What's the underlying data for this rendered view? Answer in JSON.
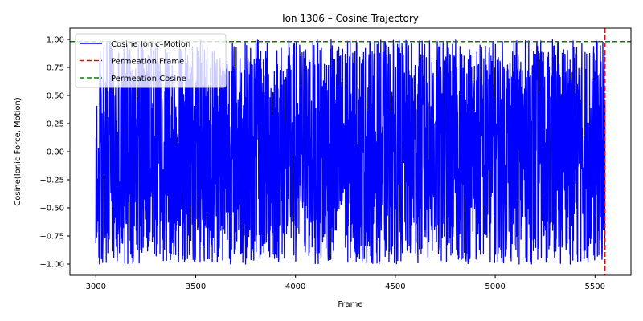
{
  "chart_data": {
    "type": "line",
    "title": "Ion 1306 – Cosine Trajectory",
    "xlabel": "Frame",
    "ylabel": "Cosine(Ionic Force, Motion)",
    "xlim": [
      2870,
      5680
    ],
    "ylim": [
      -1.1,
      1.1
    ],
    "xticks": [
      3000,
      3500,
      4000,
      4500,
      5000,
      5500
    ],
    "xtick_labels": [
      "3000",
      "3500",
      "4000",
      "4500",
      "5000",
      "5500"
    ],
    "yticks": [
      -1.0,
      -0.75,
      -0.5,
      -0.25,
      0.0,
      0.25,
      0.5,
      0.75,
      1.0
    ],
    "ytick_labels": [
      "−1.00",
      "−0.75",
      "−0.50",
      "−0.25",
      "0.00",
      "0.25",
      "0.50",
      "0.75",
      "1.00"
    ],
    "grid": false,
    "legend_position": "top-left",
    "series": [
      {
        "name": "Cosine Ionic–Motion",
        "color": "#0000ff",
        "style": "solid",
        "x_start": 3000,
        "x_end": 5550,
        "x_step": 1,
        "y_range": [
          -1.0,
          1.0
        ],
        "noise": "dense oscillation between about -1 and 1 every frame"
      }
    ],
    "reference_lines": [
      {
        "name": "Permeation Frame",
        "orientation": "vertical",
        "value": 5550,
        "color": "#ff0000",
        "style": "dashed"
      },
      {
        "name": "Permeation Cosine",
        "orientation": "horizontal",
        "value": 0.98,
        "color": "#008000",
        "style": "dashed"
      }
    ]
  }
}
